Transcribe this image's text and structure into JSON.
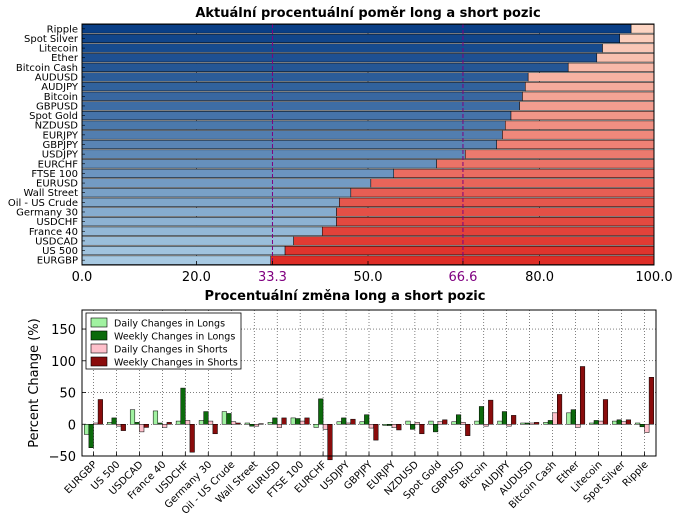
{
  "chart_data": [
    {
      "type": "bar",
      "orientation": "horizontal",
      "stacked": true,
      "title": "Aktuální procentuální poměr long a short pozic",
      "categories": [
        "Ripple",
        "Spot Silver",
        "Litecoin",
        "Ether",
        "Bitcoin Cash",
        "AUDUSD",
        "AUDJPY",
        "Bitcoin",
        "GBPUSD",
        "Spot Gold",
        "NZDUSD",
        "EURJPY",
        "GBPJPY",
        "USDJPY",
        "EURCHF",
        "FTSE 100",
        "EURUSD",
        "Wall Street",
        "Oil - US Crude",
        "Germany 30",
        "USDCHF",
        "France 40",
        "USDCAD",
        "US 500",
        "EURGBP"
      ],
      "long_pct": [
        96,
        94,
        91,
        90,
        85,
        78,
        77.5,
        77,
        76.5,
        75,
        74,
        73.5,
        72.5,
        67,
        62,
        54.5,
        50.5,
        47,
        45,
        44.5,
        44.5,
        42,
        37,
        35.5,
        33
      ],
      "xlim": [
        0,
        100
      ],
      "xticks": [
        "0.0",
        "20.0",
        "33.3",
        "50.0",
        "66.6",
        "80.0",
        "100.0"
      ],
      "reference_lines": [
        33.3,
        66.6
      ],
      "grid": true
    },
    {
      "type": "bar",
      "title": "Procentuální změna long a short pozic",
      "ylabel": "Percent Change (%)",
      "ylim": [
        -50,
        180
      ],
      "yticks": [
        "−50",
        "0",
        "50",
        "100",
        "150"
      ],
      "categories": [
        "EURGBP",
        "US 500",
        "USDCAD",
        "France 40",
        "USDCHF",
        "Germany 30",
        "Oil - US Crude",
        "Wall Street",
        "EURUSD",
        "FTSE 100",
        "EURCHF",
        "USDJPY",
        "GBPJPY",
        "EURJPY",
        "NZDUSD",
        "Spot Gold",
        "GBPUSD",
        "Bitcoin",
        "AUDJPY",
        "AUDUSD",
        "Bitcoin Cash",
        "Ether",
        "Litecoin",
        "Spot Silver",
        "Ripple"
      ],
      "legend_position": "top-left",
      "grid": true,
      "series": [
        {
          "name": "Daily Changes in Longs",
          "values": [
            -16,
            3,
            23,
            21,
            5,
            6,
            20,
            2,
            3,
            10,
            -5,
            4,
            4,
            -2,
            5,
            5,
            4,
            5,
            5,
            2,
            3,
            18,
            2,
            5,
            2
          ]
        },
        {
          "name": "Weekly Changes in Longs",
          "values": [
            -37,
            10,
            3,
            2,
            57,
            20,
            17,
            -3,
            10,
            9,
            40,
            10,
            15,
            -2,
            -8,
            -12,
            15,
            28,
            20,
            2,
            6,
            23,
            6,
            7,
            -4
          ]
        },
        {
          "name": "Daily Changes in Shorts",
          "values": [
            2,
            -3,
            -12,
            -5,
            6,
            5,
            4,
            -3,
            -5,
            5,
            -8,
            2,
            -6,
            -5,
            3,
            4,
            3,
            -3,
            -3,
            2,
            18,
            -5,
            5,
            4,
            -13
          ]
        },
        {
          "name": "Weekly Changes in Shorts",
          "values": [
            39,
            -10,
            -5,
            3,
            -44,
            -15,
            2,
            1,
            10,
            10,
            -56,
            8,
            -25,
            -9,
            -15,
            7,
            -18,
            38,
            14,
            3,
            47,
            91,
            39,
            7,
            74
          ]
        }
      ]
    }
  ],
  "colors": {
    "long_bars": [
      "#08306b",
      "#f7fbff"
    ],
    "short_bars": [
      "#fff5f0",
      "#b0141c"
    ],
    "daily_longs": "#a1f2a1",
    "weekly_longs": "#0c6a0c",
    "daily_shorts": "#ffc0cb",
    "weekly_shorts": "#8a0c0c",
    "reference_line": "#800080"
  }
}
